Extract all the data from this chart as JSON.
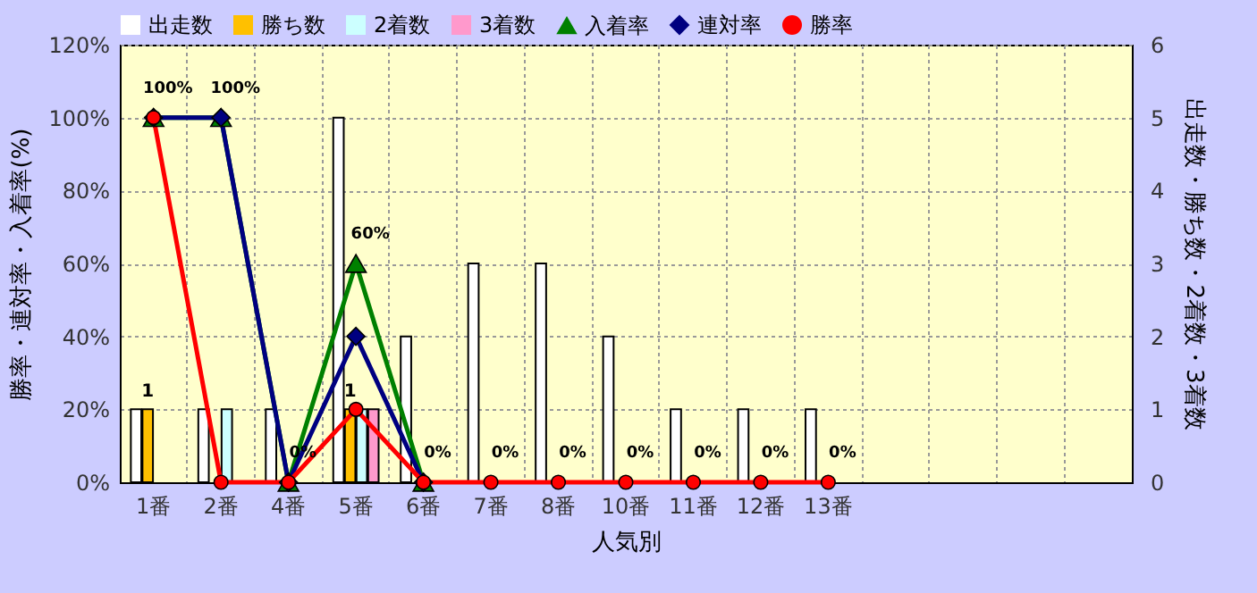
{
  "chart_data": {
    "type": "bar",
    "xlabel": "人気別",
    "ylabel": "勝率・連対率・入着率(%)",
    "y2label": "出走数・勝ち数・2着数・3着数",
    "categories": [
      "1番",
      "2番",
      "4番",
      "5番",
      "6番",
      "7番",
      "8番",
      "10番",
      "11番",
      "12番",
      "13番",
      null,
      null,
      null,
      null
    ],
    "series": [
      {
        "name": "出走数",
        "axis": "y2",
        "color": "#ffffff",
        "values": [
          1,
          1,
          1,
          5,
          2,
          3,
          3,
          2,
          1,
          1,
          1,
          null,
          null,
          null,
          null
        ]
      },
      {
        "name": "勝ち数",
        "axis": "y2",
        "color": "#ffc000",
        "values": [
          1,
          null,
          null,
          1,
          null,
          null,
          null,
          null,
          null,
          null,
          null,
          null,
          null,
          null,
          null
        ],
        "value_labels": [
          "1",
          null,
          null,
          "1",
          null,
          null,
          null,
          null,
          null,
          null,
          null,
          null,
          null,
          null,
          null
        ]
      },
      {
        "name": "2着数",
        "axis": "y2",
        "color": "#ccffff",
        "values": [
          null,
          1,
          null,
          1,
          null,
          null,
          null,
          null,
          null,
          null,
          null,
          null,
          null,
          null,
          null
        ]
      },
      {
        "name": "3着数",
        "axis": "y2",
        "color": "#ff99cc",
        "values": [
          null,
          null,
          null,
          1,
          null,
          null,
          null,
          null,
          null,
          null,
          null,
          null,
          null,
          null,
          null
        ]
      },
      {
        "name": "入着率",
        "type": "line",
        "marker": "triangle",
        "color": "#008000",
        "values": [
          100,
          100,
          0,
          60,
          0,
          null,
          null,
          null,
          null,
          null,
          null,
          null,
          null,
          null,
          null
        ],
        "value_labels": [
          "100%",
          "100%",
          "0%",
          "60%",
          "0%",
          null,
          null,
          null,
          null,
          null,
          null,
          null,
          null,
          null,
          null
        ]
      },
      {
        "name": "連対率",
        "type": "line",
        "marker": "diamond",
        "color": "#000080",
        "values": [
          100,
          100,
          0,
          40,
          0,
          null,
          null,
          null,
          null,
          null,
          null,
          null,
          null,
          null,
          null
        ]
      },
      {
        "name": "勝率",
        "type": "line",
        "marker": "circle",
        "color": "#ff0000",
        "values": [
          100,
          0,
          0,
          20,
          0,
          0,
          0,
          0,
          0,
          0,
          0,
          null,
          null,
          null,
          null
        ],
        "value_labels": [
          null,
          null,
          null,
          null,
          null,
          "0%",
          "0%",
          "0%",
          "0%",
          "0%",
          "0%",
          null,
          null,
          null,
          null
        ]
      }
    ],
    "ylim": [
      0,
      120
    ],
    "yticks": [
      {
        "value": 0,
        "label": "0%"
      },
      {
        "value": 20,
        "label": "20%"
      },
      {
        "value": 40,
        "label": "40%"
      },
      {
        "value": 60,
        "label": "60%"
      },
      {
        "value": 80,
        "label": "80%"
      },
      {
        "value": 100,
        "label": "100%"
      },
      {
        "value": 120,
        "label": "120%"
      }
    ],
    "y2lim": [
      0,
      6
    ],
    "y2ticks": [
      0,
      1,
      2,
      3,
      4,
      5,
      6
    ],
    "grid": true,
    "legend": "top",
    "line_style": "solid"
  }
}
